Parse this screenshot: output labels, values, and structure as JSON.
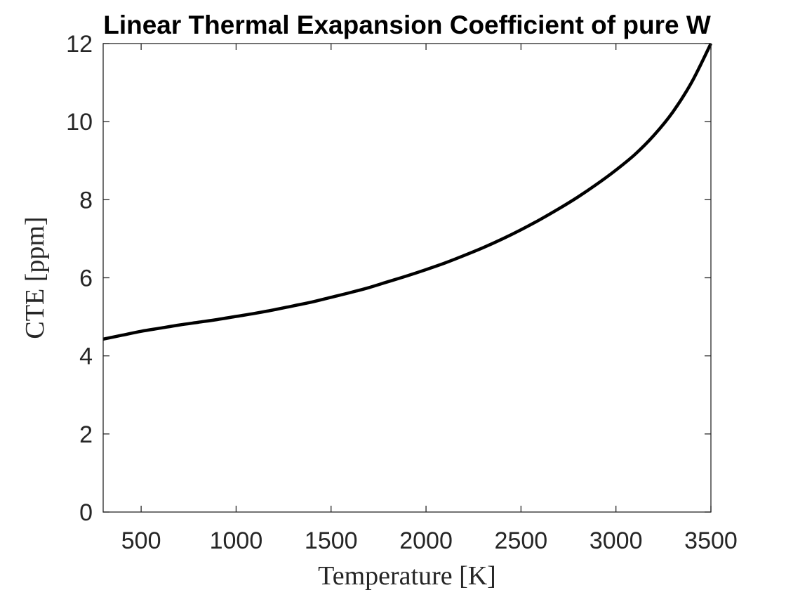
{
  "chart_data": {
    "type": "line",
    "title": "Linear Thermal Exapansion Coefficient of pure W",
    "xlabel": "Temperature [K]",
    "ylabel": "CTE [ppm]",
    "xlim": [
      300,
      3500
    ],
    "ylim": [
      0,
      12
    ],
    "xticks": [
      500,
      1000,
      1500,
      2000,
      2500,
      3000,
      3500
    ],
    "yticks": [
      0,
      2,
      4,
      6,
      8,
      10,
      12
    ],
    "grid": false,
    "legend": "none",
    "series": [
      {
        "color": "#000000",
        "x": [
          300,
          400,
          500,
          600,
          700,
          800,
          900,
          1000,
          1100,
          1200,
          1300,
          1400,
          1500,
          1600,
          1700,
          1800,
          1900,
          2000,
          2100,
          2200,
          2300,
          2400,
          2500,
          2600,
          2700,
          2800,
          2900,
          3000,
          3100,
          3200,
          3300,
          3400,
          3500
        ],
        "y": [
          4.43,
          4.53,
          4.63,
          4.71,
          4.79,
          4.86,
          4.93,
          5.01,
          5.09,
          5.18,
          5.28,
          5.38,
          5.5,
          5.62,
          5.75,
          5.9,
          6.05,
          6.21,
          6.38,
          6.57,
          6.77,
          6.99,
          7.23,
          7.49,
          7.77,
          8.07,
          8.4,
          8.76,
          9.16,
          9.65,
          10.25,
          11.02,
          12.0
        ]
      }
    ]
  }
}
